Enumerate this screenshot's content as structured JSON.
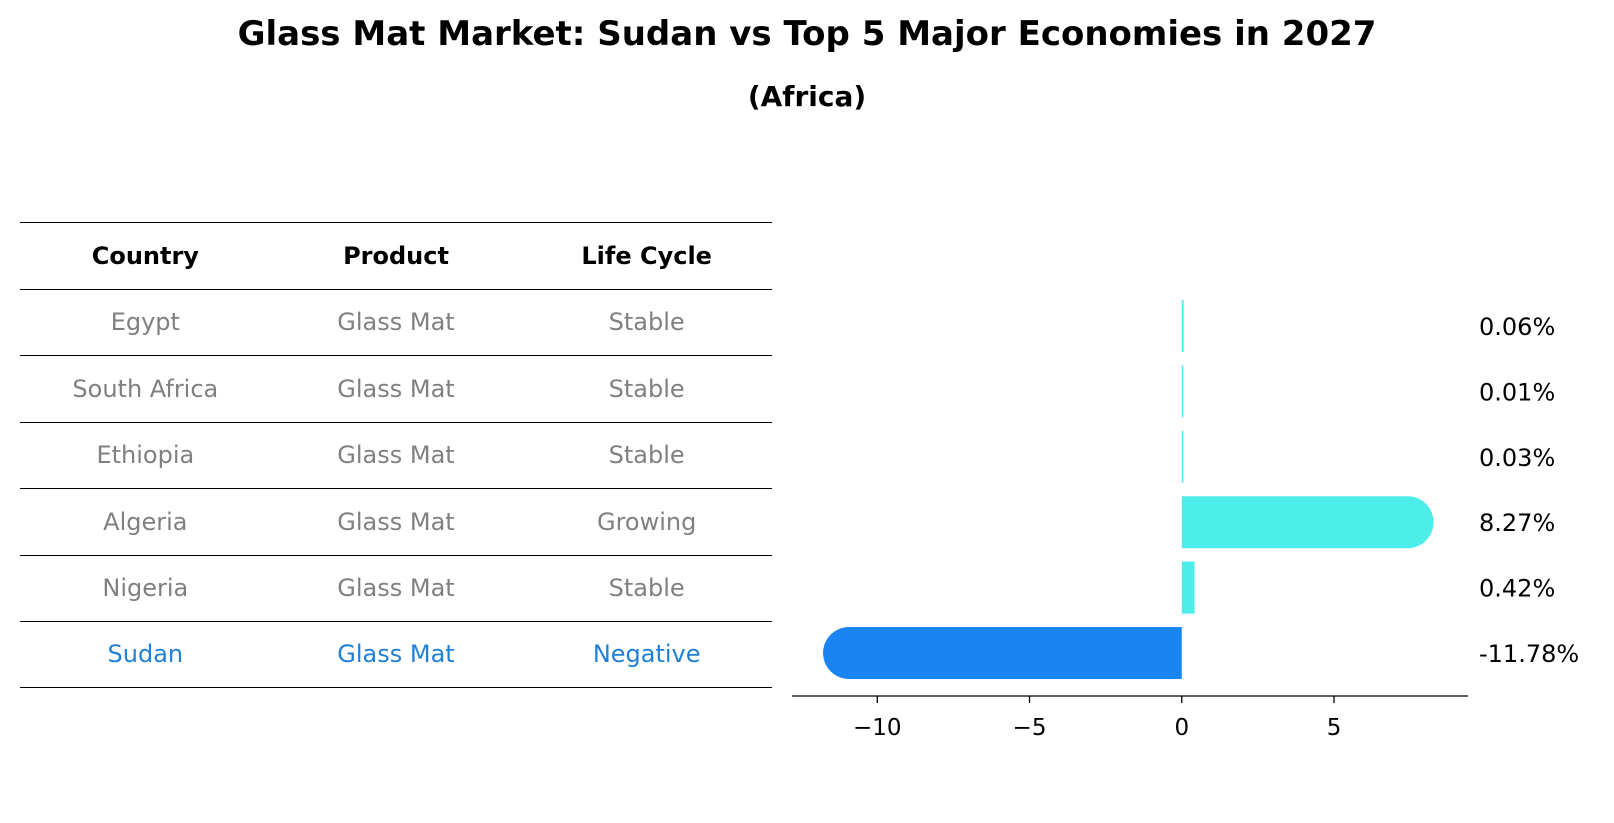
{
  "title": "Glass Mat Market: Sudan vs Top 5 Major Economies in 2027",
  "subtitle": "(Africa)",
  "table": {
    "headers": [
      "Country",
      "Product",
      "Life Cycle"
    ],
    "rows": [
      {
        "country": "Egypt",
        "product": "Glass Mat",
        "life_cycle": "Stable"
      },
      {
        "country": "South Africa",
        "product": "Glass Mat",
        "life_cycle": "Stable"
      },
      {
        "country": "Ethiopia",
        "product": "Glass Mat",
        "life_cycle": "Stable"
      },
      {
        "country": "Algeria",
        "product": "Glass Mat",
        "life_cycle": "Growing"
      },
      {
        "country": "Nigeria",
        "product": "Glass Mat",
        "life_cycle": "Stable"
      },
      {
        "country": "Sudan",
        "product": "Glass Mat",
        "life_cycle": "Negative"
      }
    ]
  },
  "colors": {
    "others": "#4deeea",
    "highlight": "#1a85f2",
    "muted_text": "#808080",
    "highlight_text": "#1f80d6"
  },
  "chart_data": {
    "type": "bar",
    "orientation": "horizontal",
    "categories": [
      "Egypt",
      "South Africa",
      "Ethiopia",
      "Algeria",
      "Nigeria",
      "Sudan"
    ],
    "values": [
      0.06,
      0.01,
      0.03,
      8.27,
      0.42,
      -11.78
    ],
    "value_labels": [
      "0.06%",
      "0.01%",
      "0.03%",
      "8.27%",
      "0.42%",
      "-11.78%"
    ],
    "xlim": [
      -12.8,
      9.4
    ],
    "xticks": [
      -10,
      -5,
      0,
      5
    ],
    "xtick_labels": [
      "−10",
      "−5",
      "0",
      "5"
    ],
    "highlight": "Sudan",
    "grid": false
  }
}
